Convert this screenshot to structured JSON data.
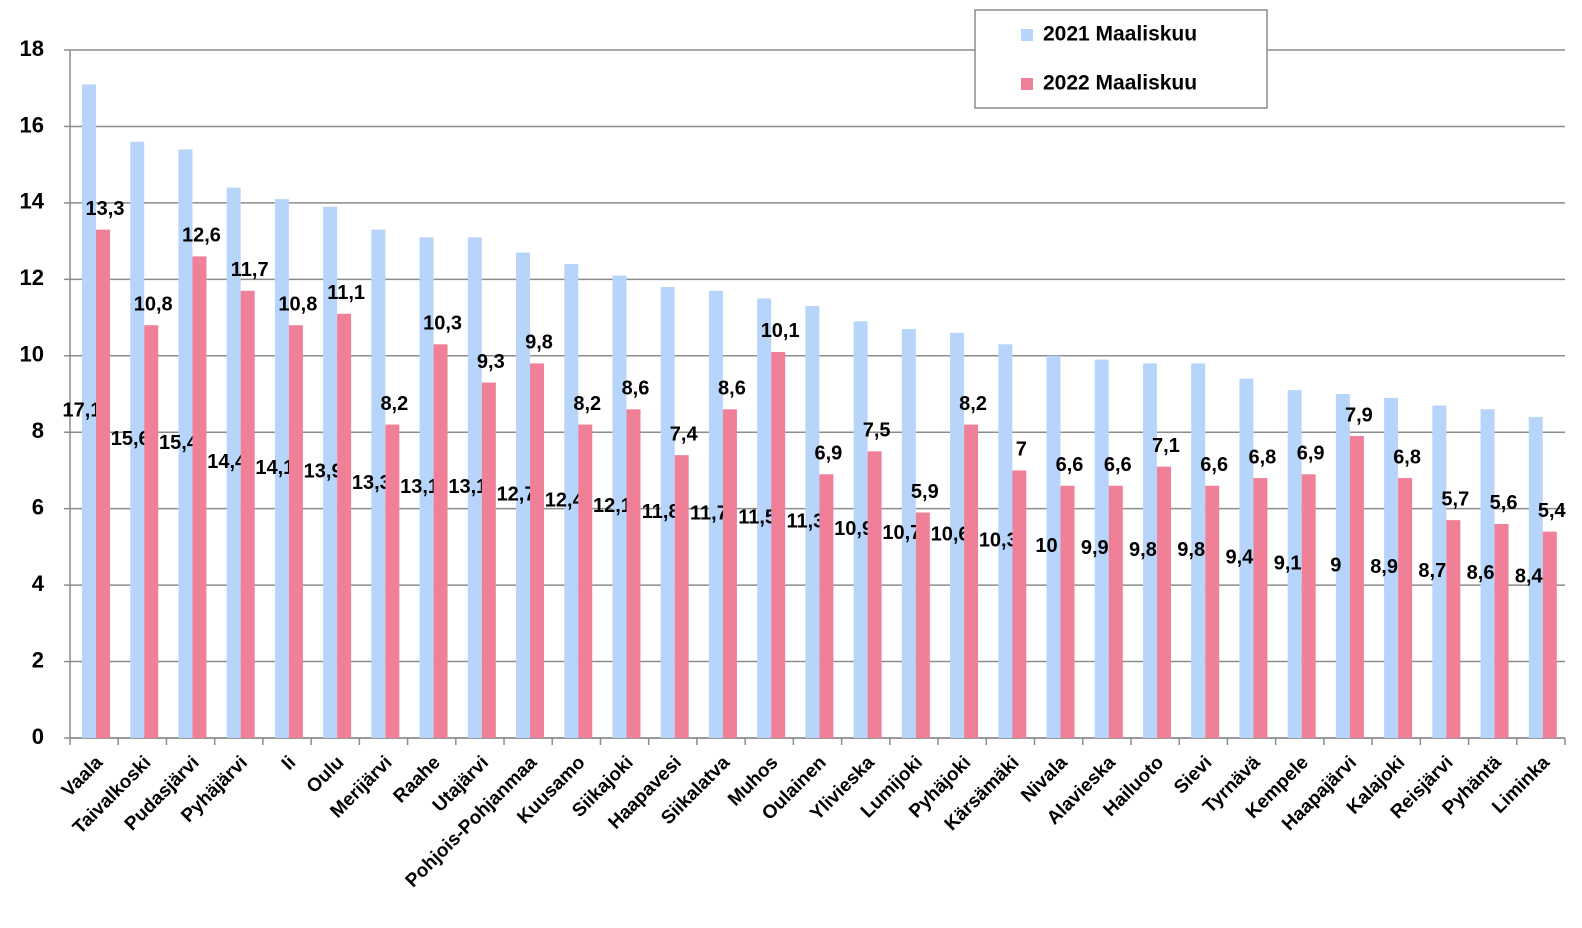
{
  "chart_data": {
    "type": "bar",
    "categories": [
      "Vaala",
      "Taivalkoski",
      "Pudasjärvi",
      "Pyhäjärvi",
      "Ii",
      "Oulu",
      "Merijärvi",
      "Raahe",
      "Utajärvi",
      "Pohjois-Pohjanmaa",
      "Kuusamo",
      "Siikajoki",
      "Haapavesi",
      "Siikalatva",
      "Muhos",
      "Oulainen",
      "Ylivieska",
      "Lumijoki",
      "Pyhäjoki",
      "Kärsämäki",
      "Nivala",
      "Alavieska",
      "Hailuoto",
      "Sievi",
      "Tyrnävä",
      "Kempele",
      "Haapajärvi",
      "Kalajoki",
      "Reisjärvi",
      "Pyhäntä",
      "Liminka"
    ],
    "series": [
      {
        "name": "2021 Maaliskuu",
        "color": "#b7d5fb",
        "values": [
          17.1,
          15.6,
          15.4,
          14.4,
          14.1,
          13.9,
          13.3,
          13.1,
          13.1,
          12.7,
          12.4,
          12.1,
          11.8,
          11.7,
          11.5,
          11.3,
          10.9,
          10.7,
          10.6,
          10.3,
          10,
          9.9,
          9.8,
          9.8,
          9.4,
          9.1,
          9,
          8.9,
          8.7,
          8.6,
          8.4
        ],
        "value_labels": [
          "17,1",
          "15,6",
          "15,4",
          "14,4",
          "14,1",
          "13,9",
          "13,3",
          "13,1",
          "13,1",
          "12,7",
          "12,4",
          "12,1",
          "11,8",
          "11,7",
          "11,5",
          "11,3",
          "10,9",
          "10,7",
          "10,6",
          "10,3",
          "10",
          "9,9",
          "9,8",
          "9,8",
          "9,4",
          "9,1",
          "9",
          "8,9",
          "8,7",
          "8,6",
          "8,4"
        ]
      },
      {
        "name": "2022 Maaliskuu",
        "color": "#f08098",
        "values": [
          13.3,
          10.8,
          12.6,
          11.7,
          10.8,
          11.1,
          8.2,
          10.3,
          9.3,
          9.8,
          8.2,
          8.6,
          7.4,
          8.6,
          10.1,
          6.9,
          7.5,
          5.9,
          8.2,
          7,
          6.6,
          6.6,
          7.1,
          6.6,
          6.8,
          6.9,
          7.9,
          6.8,
          5.7,
          5.6,
          5.4
        ],
        "value_labels": [
          "13,3",
          "10,8",
          "12,6",
          "11,7",
          "10,8",
          "11,1",
          "8,2",
          "10,3",
          "9,3",
          "9,8",
          "8,2",
          "8,6",
          "7,4",
          "8,6",
          "10,1",
          "6,9",
          "7,5",
          "5,9",
          "8,2",
          "7",
          "6,6",
          "6,6",
          "7,1",
          "6,6",
          "6,8",
          "6,9",
          "7,9",
          "6,8",
          "5,7",
          "5,6",
          "5,4"
        ]
      }
    ],
    "ylim": [
      0,
      18
    ],
    "yticks": [
      0,
      2,
      4,
      6,
      8,
      10,
      12,
      14,
      16,
      18
    ],
    "grid": true,
    "legend": "top-right"
  }
}
